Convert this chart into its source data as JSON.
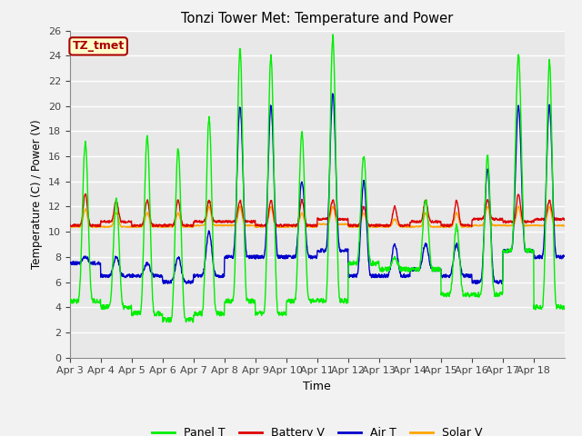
{
  "title": "Tonzi Tower Met: Temperature and Power",
  "xlabel": "Time",
  "ylabel": "Temperature (C) / Power (V)",
  "annotation": "TZ_tmet",
  "ylim": [
    0,
    26
  ],
  "yticks": [
    0,
    2,
    4,
    6,
    8,
    10,
    12,
    14,
    16,
    18,
    20,
    22,
    24,
    26
  ],
  "x_tick_labels": [
    "Apr 3",
    "Apr 4",
    "Apr 5",
    "Apr 6",
    "Apr 7",
    "Apr 8",
    "Apr 9",
    "Apr 10",
    "Apr 11",
    "Apr 12",
    "Apr 13",
    "Apr 14",
    "Apr 15",
    "Apr 16",
    "Apr 17",
    "Apr 18"
  ],
  "colors": {
    "panel_t": "#00EE00",
    "battery_v": "#DD0000",
    "air_t": "#0000CC",
    "solar_v": "#FFA500"
  },
  "legend_labels": [
    "Panel T",
    "Battery V",
    "Air T",
    "Solar V"
  ],
  "bg_color": "#E8E8E8",
  "grid_color": "#FFFFFF",
  "annotation_bg": "#FFFFCC",
  "annotation_border": "#AA0000",
  "annotation_text_color": "#AA0000",
  "fig_bg": "#F2F2F2"
}
